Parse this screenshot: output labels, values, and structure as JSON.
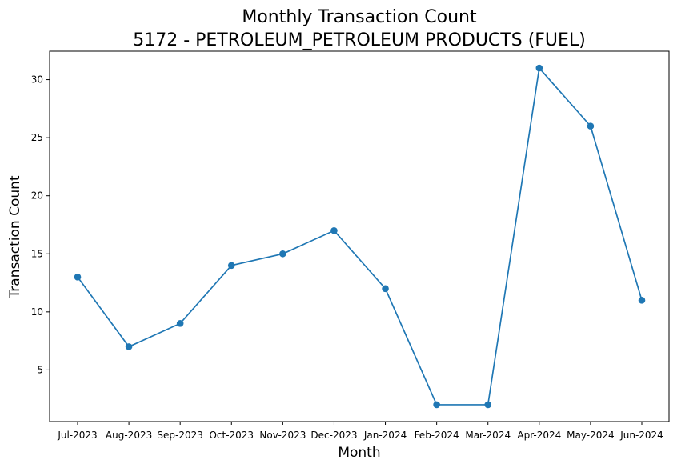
{
  "chart_data": {
    "type": "line",
    "title": "Monthly Transaction Count",
    "subtitle": "5172 - PETROLEUM_PETROLEUM PRODUCTS (FUEL)",
    "xlabel": "Month",
    "ylabel": "Transaction Count",
    "categories": [
      "Jul-2023",
      "Aug-2023",
      "Sep-2023",
      "Oct-2023",
      "Nov-2023",
      "Dec-2023",
      "Jan-2024",
      "Feb-2024",
      "Mar-2024",
      "Apr-2024",
      "May-2024",
      "Jun-2024"
    ],
    "series": [
      {
        "values": [
          13,
          7,
          9,
          14,
          15,
          17,
          12,
          2,
          2,
          31,
          26,
          11
        ],
        "color": "#1f77b4",
        "marker": "circle"
      }
    ],
    "yticks": [
      5,
      10,
      15,
      20,
      25,
      30
    ],
    "ylim": [
      0.55,
      32.45
    ],
    "grid": false,
    "legend": "none"
  }
}
